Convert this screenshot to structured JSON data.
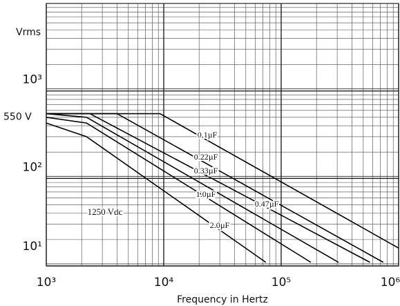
{
  "chart_data": {
    "type": "line",
    "y_label": "Vrms",
    "x_label": "Frequency in Hertz",
    "log_x": true,
    "log_y": true,
    "grid": true,
    "xlim": [
      1000,
      1000000
    ],
    "ylim": [
      10,
      10000
    ],
    "xticks": [
      {
        "value": 1000,
        "label": "10³"
      },
      {
        "value": 10000,
        "label": "10⁴"
      },
      {
        "value": 100000,
        "label": "10⁵"
      },
      {
        "value": 1000000,
        "label": "10⁶"
      }
    ],
    "yticks": [
      {
        "value": 10,
        "label": "10¹"
      },
      {
        "value": 100,
        "label": "10²"
      },
      {
        "value": 1000,
        "label": "10³"
      }
    ],
    "annotations": [
      {
        "text": "550 V",
        "value": 550
      },
      {
        "text": "1250 Vdc"
      }
    ],
    "series": [
      {
        "name": "0.1µF",
        "color": "#000000",
        "x": [
          1000,
          9300,
          1000000
        ],
        "values": [
          550,
          550,
          16
        ]
      },
      {
        "name": "0.22µF",
        "color": "#000000",
        "x": [
          1000,
          4000,
          740000
        ],
        "values": [
          550,
          550,
          11
        ]
      },
      {
        "name": "0.33µF",
        "color": "#000000",
        "x": [
          1000,
          2350,
          570000
        ],
        "values": [
          550,
          550,
          11
        ]
      },
      {
        "name": "0.47µF",
        "color": "#000000",
        "x": [
          1000,
          2200,
          308000
        ],
        "values": [
          550,
          500,
          11
        ]
      },
      {
        "name": "1.0µF",
        "color": "#000000",
        "x": [
          1000,
          2200,
          179000
        ],
        "values": [
          500,
          430,
          11
        ]
      },
      {
        "name": "2.0µF",
        "color": "#000000",
        "x": [
          1000,
          2200,
          74000
        ],
        "values": [
          430,
          300,
          11
        ]
      }
    ]
  }
}
